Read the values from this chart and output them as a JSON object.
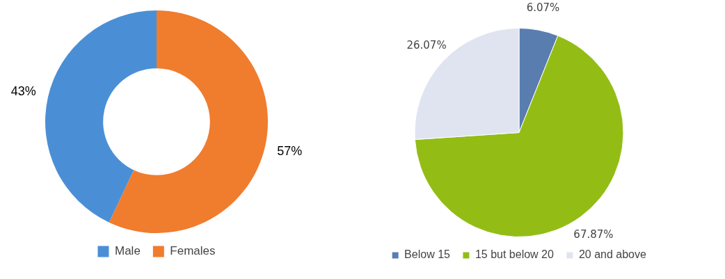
{
  "chart_data": [
    {
      "type": "donut",
      "categories": [
        "Male",
        "Females"
      ],
      "values": [
        43,
        57
      ],
      "colors": [
        "#4a8fd6",
        "#f07c2e"
      ],
      "value_labels": [
        "43%",
        "57%"
      ],
      "legend": "bottom"
    },
    {
      "type": "pie",
      "categories": [
        "Below 15",
        "15 but below 20",
        "20 and above"
      ],
      "values": [
        6.07,
        67.87,
        26.07
      ],
      "colors": [
        "#5a7db0",
        "#93bd15",
        "#dfe4f0"
      ],
      "value_labels": [
        "6.07%",
        "67.87%",
        "26.07%"
      ],
      "legend": "bottom"
    }
  ]
}
